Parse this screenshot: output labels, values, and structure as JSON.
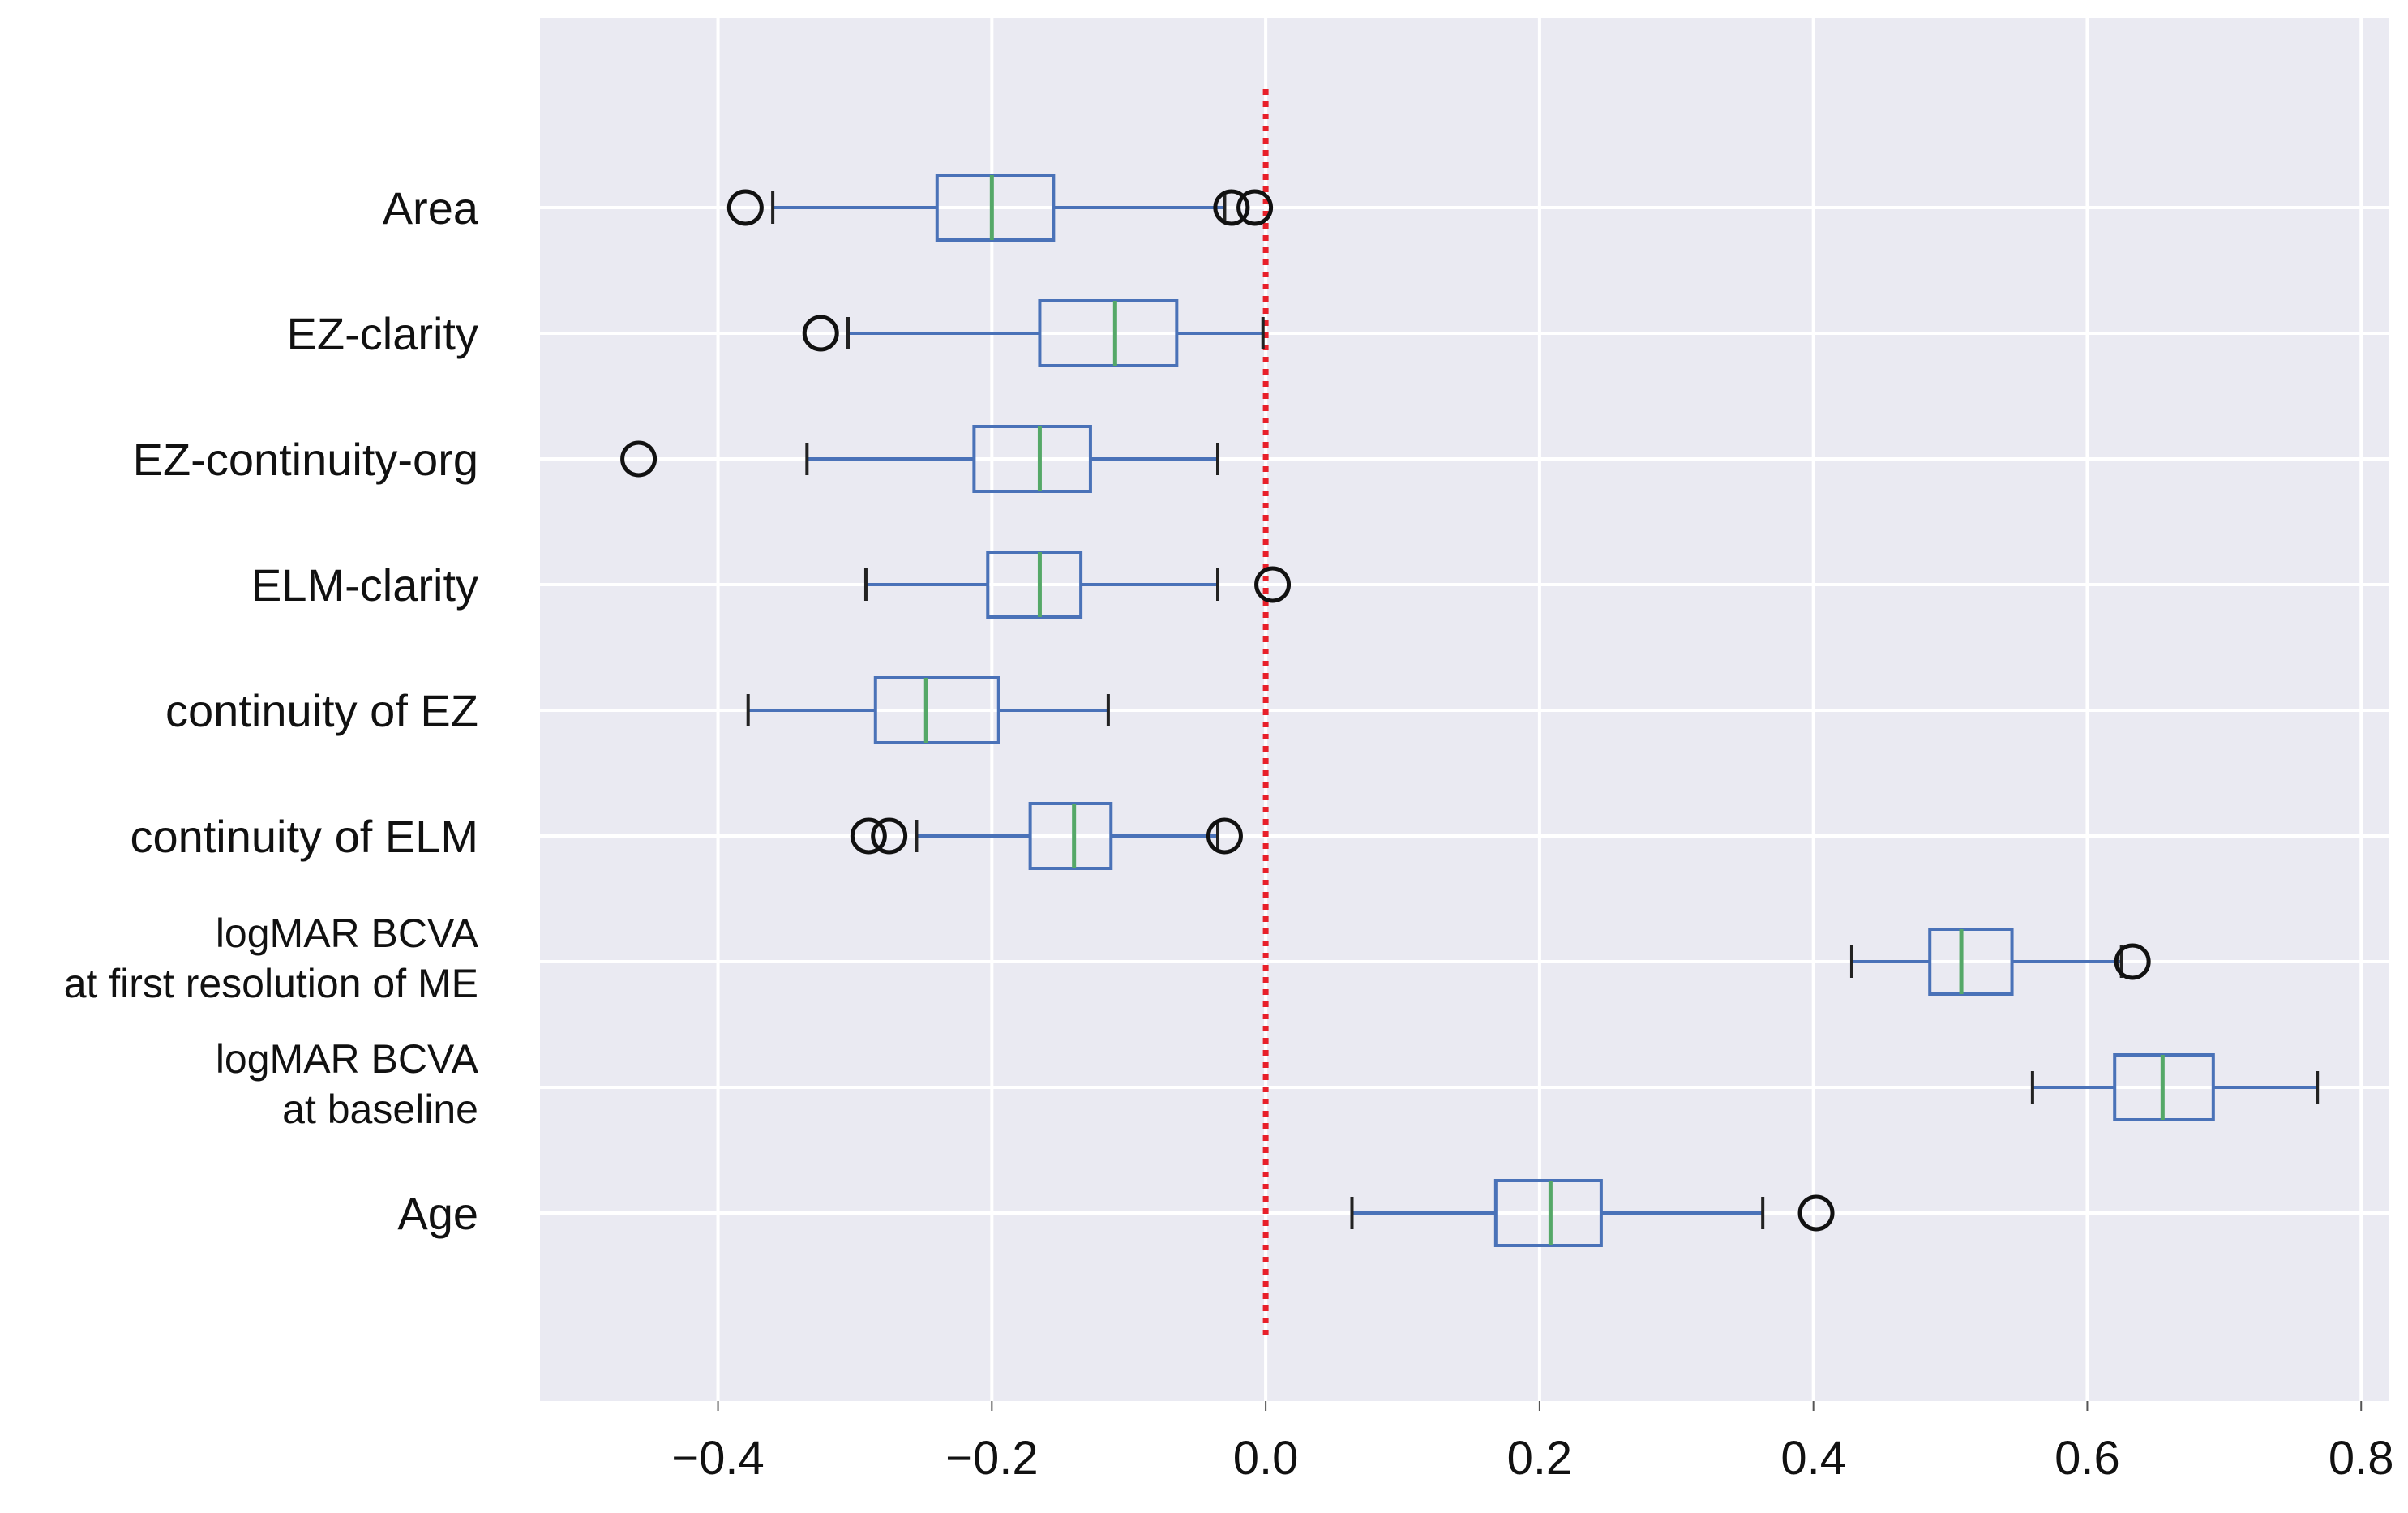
{
  "chart_data": {
    "type": "boxplot",
    "orientation": "horizontal",
    "title": "",
    "xlabel": "",
    "ylabel": "",
    "xlim": [
      -0.53,
      0.82
    ],
    "xticks": [
      -0.4,
      -0.2,
      0.0,
      0.2,
      0.4,
      0.6,
      0.8
    ],
    "xtick_labels": [
      "−0.4",
      "−0.2",
      "0.0",
      "0.2",
      "0.4",
      "0.6",
      "0.8"
    ],
    "grid": true,
    "reference_line": {
      "x": 0.0,
      "style": "dotted",
      "color": "#e8202a"
    },
    "colors": {
      "background": "#eaeaf2",
      "grid": "#ffffff",
      "box": "#4a72b8",
      "median": "#55a868",
      "whisker_cap": "#222222",
      "flier": "#111111"
    },
    "series": [
      {
        "name": "Area",
        "lines": [
          "Area"
        ],
        "whisker_low": -0.36,
        "q1": -0.24,
        "median": -0.2,
        "q3": -0.155,
        "whisker_high": -0.03,
        "fliers": [
          -0.38,
          -0.025,
          -0.008
        ]
      },
      {
        "name": "EZ-clarity",
        "lines": [
          "EZ-clarity"
        ],
        "whisker_low": -0.305,
        "q1": -0.165,
        "median": -0.11,
        "q3": -0.065,
        "whisker_high": -0.002,
        "fliers": [
          -0.325
        ]
      },
      {
        "name": "EZ-continuity-org",
        "lines": [
          "EZ-continuity-org"
        ],
        "whisker_low": -0.335,
        "q1": -0.213,
        "median": -0.165,
        "q3": -0.128,
        "whisker_high": -0.035,
        "fliers": [
          -0.458
        ]
      },
      {
        "name": "ELM-clarity",
        "lines": [
          "ELM-clarity"
        ],
        "whisker_low": -0.292,
        "q1": -0.203,
        "median": -0.165,
        "q3": -0.135,
        "whisker_high": -0.035,
        "fliers": [
          0.005
        ]
      },
      {
        "name": "continuity of EZ",
        "lines": [
          "continuity of EZ"
        ],
        "whisker_low": -0.378,
        "q1": -0.285,
        "median": -0.248,
        "q3": -0.195,
        "whisker_high": -0.115,
        "fliers": []
      },
      {
        "name": "continuity of ELM",
        "lines": [
          "continuity of ELM"
        ],
        "whisker_low": -0.255,
        "q1": -0.172,
        "median": -0.14,
        "q3": -0.113,
        "whisker_high": -0.035,
        "fliers": [
          -0.29,
          -0.275,
          -0.03
        ]
      },
      {
        "name": "logMAR BCVA at first resolution of ME",
        "lines": [
          "logMAR BCVA",
          "at first resolution of ME"
        ],
        "whisker_low": 0.428,
        "q1": 0.485,
        "median": 0.508,
        "q3": 0.545,
        "whisker_high": 0.625,
        "fliers": [
          0.633
        ]
      },
      {
        "name": "logMAR BCVA at baseline",
        "lines": [
          "logMAR BCVA",
          "at baseline"
        ],
        "whisker_low": 0.56,
        "q1": 0.62,
        "median": 0.655,
        "q3": 0.692,
        "whisker_high": 0.768,
        "fliers": []
      },
      {
        "name": "Age",
        "lines": [
          "Age"
        ],
        "whisker_low": 0.063,
        "q1": 0.168,
        "median": 0.208,
        "q3": 0.245,
        "whisker_high": 0.363,
        "fliers": [
          0.402
        ]
      }
    ]
  }
}
